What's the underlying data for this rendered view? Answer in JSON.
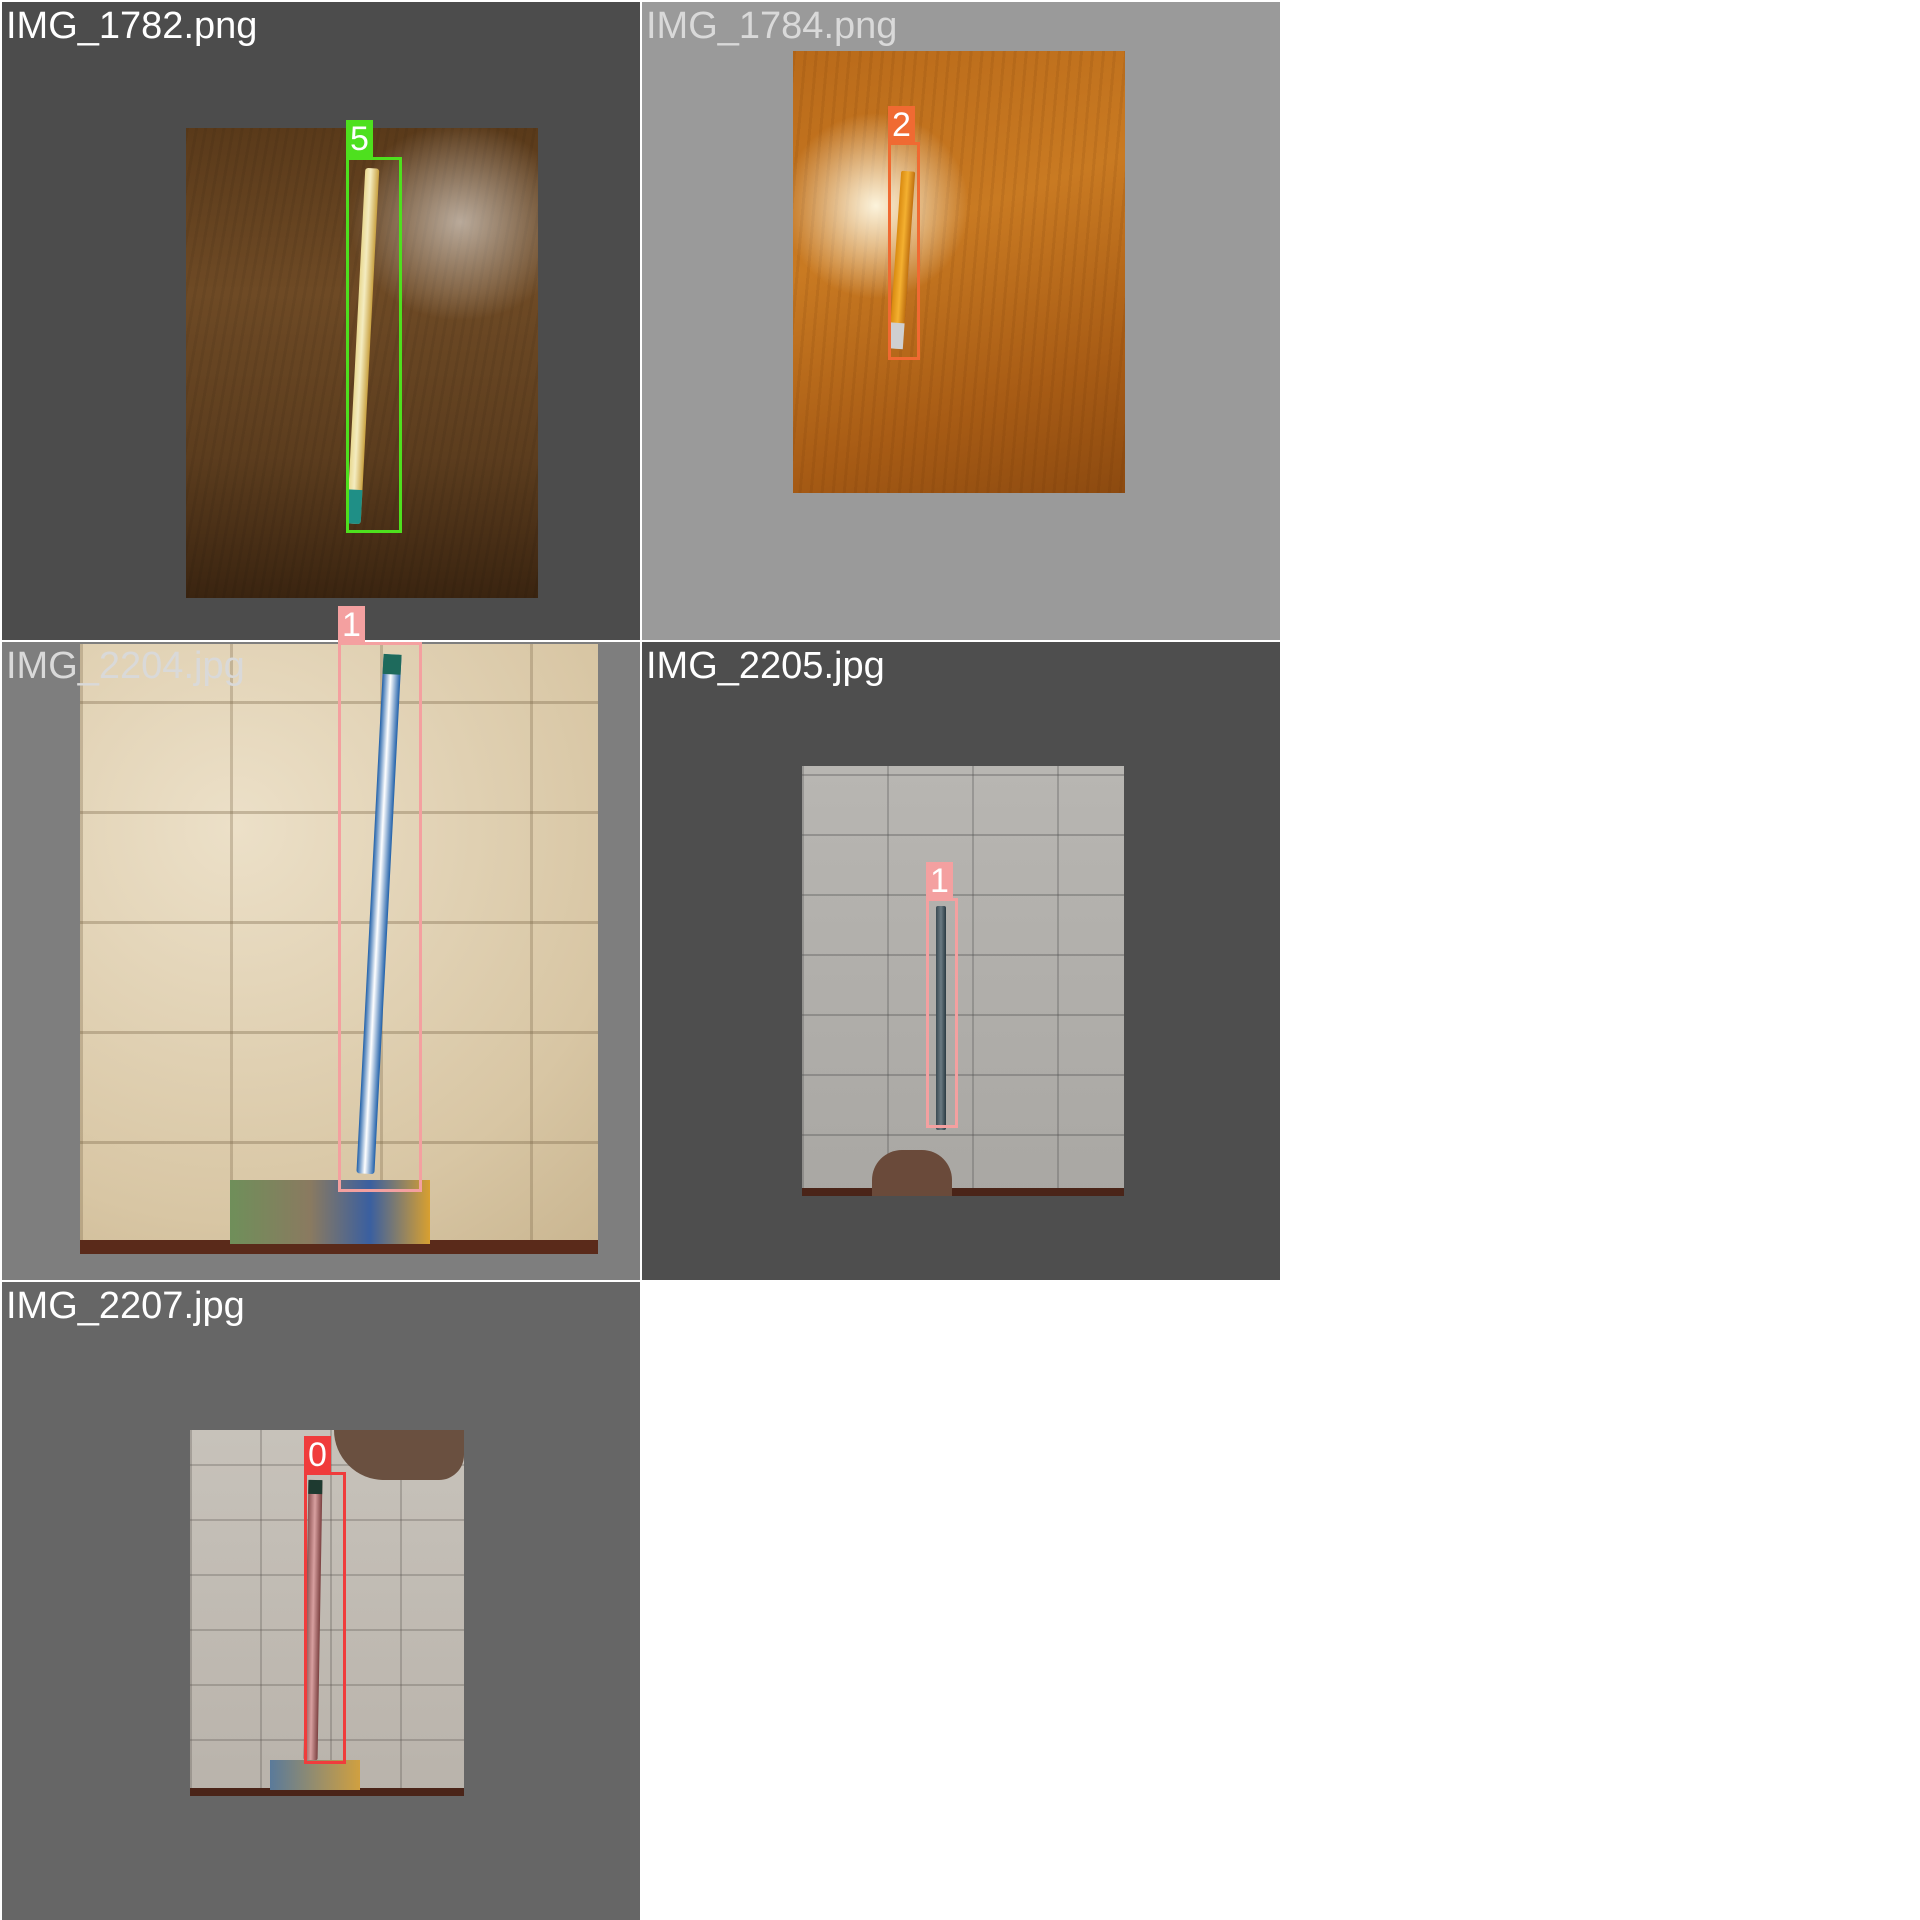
{
  "tiles": [
    {
      "filename": "IMG_1782.png",
      "box_label": "5",
      "box_color": "#4ee01e",
      "photo": "wood-dark"
    },
    {
      "filename": "IMG_1784.png",
      "box_label": "2",
      "box_color": "#f06a32",
      "photo": "wood-light"
    },
    {
      "filename": "IMG_2204.jpg",
      "box_label": "1",
      "box_color": "#f4a0a0",
      "photo": "wall-warm"
    },
    {
      "filename": "IMG_2205.jpg",
      "box_label": "1",
      "box_color": "#f4a0a0",
      "photo": "wall-grey"
    },
    {
      "filename": "IMG_2207.jpg",
      "box_label": "0",
      "box_color": "#f03c3c",
      "photo": "wall-grey2"
    }
  ]
}
